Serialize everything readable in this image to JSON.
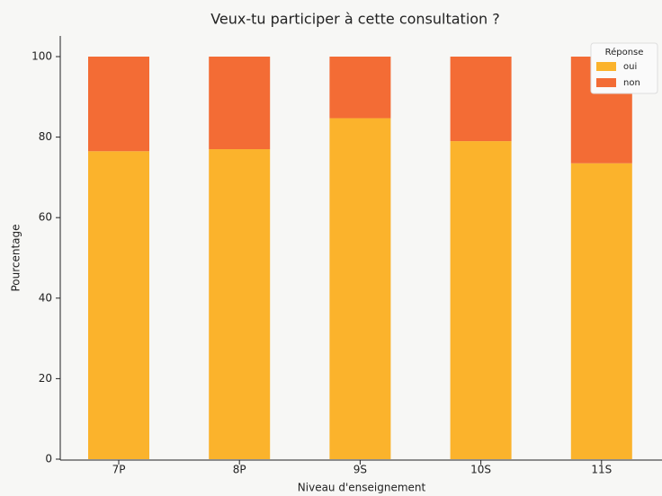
{
  "chart_data": {
    "type": "stacked_bar",
    "title": "Veux-tu participer à cette consultation ?",
    "x_label": "Niveau d'enseignement",
    "y_label": "Pourcentage",
    "categories": [
      "7P",
      "8P",
      "9S",
      "10S",
      "11S"
    ],
    "series": [
      {
        "name": "oui",
        "color": "#fbb32c",
        "values": [
          76.5,
          77,
          84.7,
          79,
          73.5
        ]
      },
      {
        "name": "non",
        "color": "#f36c35",
        "values": [
          23.5,
          23,
          15.3,
          21,
          26.5
        ]
      }
    ],
    "ylim": [
      0,
      100
    ],
    "yticks": [
      0,
      20,
      40,
      60,
      80,
      100
    ],
    "legend_title": "Réponse",
    "legend": "upper right",
    "grid": false
  }
}
